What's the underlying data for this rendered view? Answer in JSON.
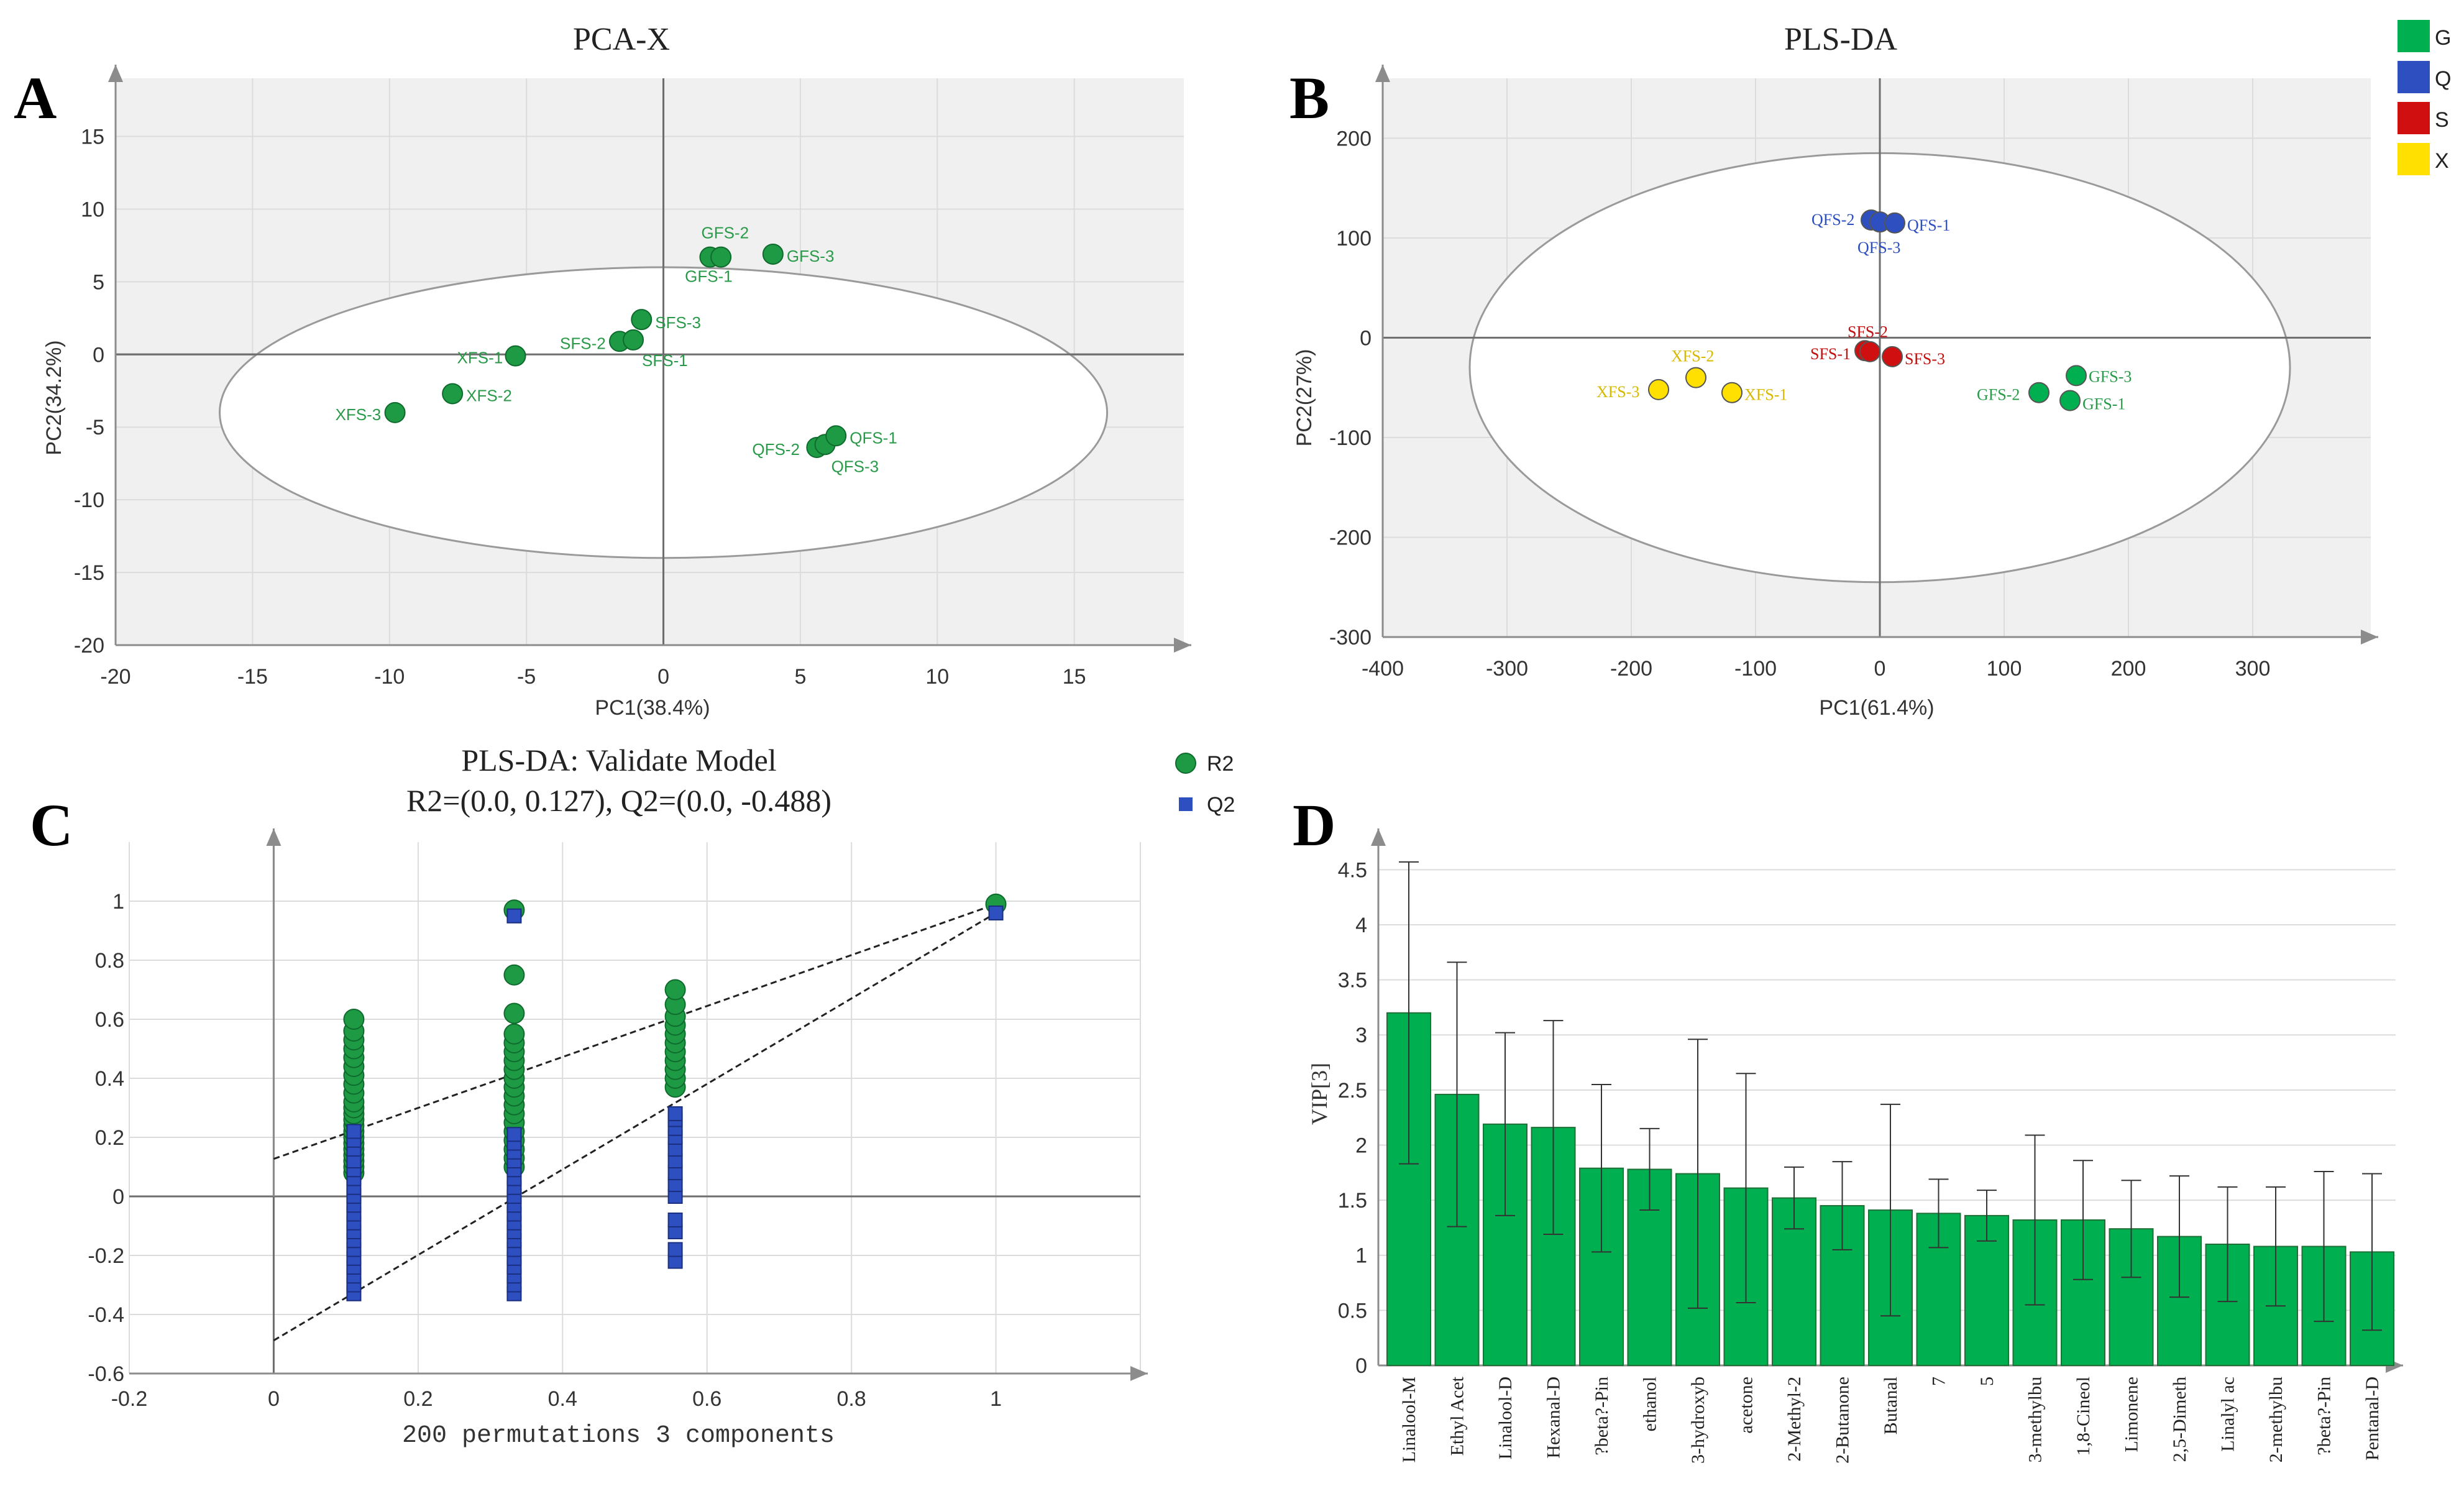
{
  "panels": {
    "A": {
      "letter": "A"
    },
    "B": {
      "letter": "B"
    },
    "C": {
      "letter": "C"
    },
    "D": {
      "letter": "D"
    }
  },
  "chart_data": [
    {
      "id": "A",
      "type": "scatter",
      "title": "PCA-X",
      "xlabel": "PC1(38.4%)",
      "ylabel": "PC2(34.2%)",
      "xlim": [
        -20,
        19
      ],
      "ylim": [
        -20,
        19
      ],
      "xticks": [
        "-20",
        "-15",
        "-10",
        "-5",
        "0",
        "5",
        "10",
        "15"
      ],
      "yticks": [
        "-20",
        "-15",
        "-10",
        "-5",
        "0",
        "5",
        "10",
        "15"
      ],
      "ellipse": {
        "cx": 0,
        "cy": -4,
        "rx": 16.2,
        "ry": 10
      },
      "marker_color": "#1e9a45",
      "label_color": "#2a9a4a",
      "points": [
        {
          "label": "GFS-2",
          "x": 1.7,
          "y": 6.7
        },
        {
          "label": "GFS-1",
          "x": 2.1,
          "y": 6.7
        },
        {
          "label": "GFS-3",
          "x": 4.0,
          "y": 6.9
        },
        {
          "label": "SFS-3",
          "x": -0.8,
          "y": 2.4
        },
        {
          "label": "SFS-2",
          "x": -1.6,
          "y": 0.9
        },
        {
          "label": "SFS-1",
          "x": -1.1,
          "y": 1.0
        },
        {
          "label": "XFS-1",
          "x": -5.4,
          "y": -0.1
        },
        {
          "label": "XFS-2",
          "x": -7.7,
          "y": -2.7
        },
        {
          "label": "XFS-3",
          "x": -9.8,
          "y": -4.0
        },
        {
          "label": "QFS-2",
          "x": 5.6,
          "y": -6.4
        },
        {
          "label": "QFS-3",
          "x": 5.9,
          "y": -6.2
        },
        {
          "label": "QFS-1",
          "x": 6.3,
          "y": -5.6
        }
      ]
    },
    {
      "id": "B",
      "type": "scatter",
      "title": "PLS-DA",
      "xlabel": "PC1(61.4%)",
      "ylabel": "PC2(27%)",
      "xlim": [
        -400,
        395
      ],
      "ylim": [
        -300,
        260
      ],
      "xticks": [
        "-400",
        "-300",
        "-200",
        "-100",
        "0",
        "100",
        "200",
        "300"
      ],
      "yticks": [
        "-300",
        "-200",
        "-100",
        "0",
        "100",
        "200"
      ],
      "ellipse": {
        "cx": 0,
        "cy": -30,
        "rx": 330,
        "ry": 215
      },
      "legend": [
        {
          "label": "G",
          "color": "#00b050"
        },
        {
          "label": "Q",
          "color": "#2e4fbf"
        },
        {
          "label": "S",
          "color": "#d01010"
        },
        {
          "label": "X",
          "color": "#ffe000"
        }
      ],
      "points": [
        {
          "label": "QFS-2",
          "x": -7,
          "y": 118,
          "group": "Q"
        },
        {
          "label": "QFS-3",
          "x": 0,
          "y": 116,
          "group": "Q"
        },
        {
          "label": "QFS-1",
          "x": 12,
          "y": 115,
          "group": "Q"
        },
        {
          "label": "SFS-2",
          "x": -12,
          "y": -13,
          "group": "S"
        },
        {
          "label": "SFS-1",
          "x": -8,
          "y": -14,
          "group": "S"
        },
        {
          "label": "SFS-3",
          "x": 10,
          "y": -19,
          "group": "S"
        },
        {
          "label": "XFS-2",
          "x": -148,
          "y": -40,
          "group": "X"
        },
        {
          "label": "XFS-3",
          "x": -178,
          "y": -52,
          "group": "X"
        },
        {
          "label": "XFS-1",
          "x": -119,
          "y": -55,
          "group": "X"
        },
        {
          "label": "GFS-3",
          "x": 158,
          "y": -38,
          "group": "G"
        },
        {
          "label": "GFS-2",
          "x": 128,
          "y": -55,
          "group": "G"
        },
        {
          "label": "GFS-1",
          "x": 153,
          "y": -63,
          "group": "G"
        }
      ]
    },
    {
      "id": "C",
      "type": "scatter",
      "title": "PLS-DA: Validate Model",
      "subtitle": "R2=(0.0, 0.127), Q2=(0.0, -0.488)",
      "xlabel": "200 permutations 3 components",
      "ylabel": "",
      "xlim": [
        -0.2,
        1.2
      ],
      "ylim": [
        -0.6,
        1.2
      ],
      "xticks": [
        "-0.2",
        "0",
        "0.2",
        "0.4",
        "0.6",
        "0.8",
        "1"
      ],
      "yticks": [
        "-0.6",
        "-0.4",
        "-0.2",
        "0",
        "0.2",
        "0.4",
        "0.6",
        "0.8",
        "1"
      ],
      "legend": [
        {
          "label": "R2",
          "color": "#1e9a45",
          "marker": "circle"
        },
        {
          "label": "Q2",
          "color": "#2e4fbf",
          "marker": "square"
        }
      ],
      "series": [
        {
          "name": "R2",
          "points": [
            {
              "x": 0.111,
              "y": [
                0.08,
                0.1,
                0.12,
                0.14,
                0.16,
                0.18,
                0.2,
                0.22,
                0.24,
                0.26,
                0.28,
                0.3,
                0.32,
                0.35,
                0.38,
                0.41,
                0.44,
                0.47,
                0.5,
                0.53,
                0.56,
                0.6
              ]
            },
            {
              "x": 0.333,
              "y": [
                0.1,
                0.13,
                0.16,
                0.19,
                0.22,
                0.25,
                0.28,
                0.31,
                0.34,
                0.37,
                0.4,
                0.43,
                0.46,
                0.49,
                0.52,
                0.55,
                0.62,
                0.75,
                0.97
              ]
            },
            {
              "x": 0.556,
              "y": [
                0.37,
                0.4,
                0.43,
                0.46,
                0.49,
                0.52,
                0.55,
                0.58,
                0.61,
                0.65,
                0.7
              ]
            },
            {
              "x": 1.0,
              "y": [
                0.99
              ]
            }
          ]
        },
        {
          "name": "Q2",
          "points": [
            {
              "x": 0.111,
              "y": [
                -0.33,
                -0.3,
                -0.27,
                -0.24,
                -0.21,
                -0.18,
                -0.15,
                -0.12,
                -0.09,
                -0.06,
                -0.03,
                0.0,
                0.03,
                0.06,
                0.09,
                0.12,
                0.16,
                0.19,
                0.22
              ]
            },
            {
              "x": 0.333,
              "y": [
                -0.33,
                -0.3,
                -0.27,
                -0.24,
                -0.21,
                -0.18,
                -0.15,
                -0.12,
                -0.09,
                -0.06,
                -0.03,
                0.0,
                0.03,
                0.06,
                0.09,
                0.12,
                0.15,
                0.18,
                0.21,
                0.95
              ]
            },
            {
              "x": 0.556,
              "y": [
                -0.22,
                -0.18,
                -0.12,
                -0.08,
                0.0,
                0.04,
                0.08,
                0.12,
                0.16,
                0.2,
                0.23,
                0.26,
                0.28
              ]
            },
            {
              "x": 1.0,
              "y": [
                0.96
              ]
            }
          ]
        }
      ],
      "regression_lines": [
        {
          "name": "R2",
          "intercept": 0.127,
          "end": [
            1.0,
            0.99
          ]
        },
        {
          "name": "Q2",
          "intercept": -0.488,
          "end": [
            1.0,
            0.96
          ]
        }
      ]
    },
    {
      "id": "D",
      "type": "bar",
      "title": "",
      "xlabel": "",
      "ylabel": "VIP[3]",
      "ylim": [
        0,
        4.75
      ],
      "yticks": [
        "0",
        "0.5",
        "1",
        "1.5",
        "2",
        "2.5",
        "3",
        "3.5",
        "4",
        "4.5"
      ],
      "bar_color": "#00b050",
      "categories": [
        "Linalool-M",
        "Ethyl Acet",
        "Linalool-D",
        "Hexanal-D",
        "?beta?-Pin",
        "ethanol",
        "3-hydroxyb",
        "acetone",
        "2-Methyl-2",
        "2-Butanone",
        "Butanal",
        "7",
        "5",
        "3-methylbu",
        "1,8-Cineol",
        "Limonene",
        "2,5-Dimeth",
        "Linalyl ac",
        "2-methylbu",
        "?beta?-Pin",
        "Pentanal-D"
      ],
      "values": [
        3.2,
        2.46,
        2.19,
        2.16,
        1.79,
        1.78,
        1.74,
        1.61,
        1.52,
        1.45,
        1.41,
        1.38,
        1.36,
        1.32,
        1.32,
        1.24,
        1.17,
        1.1,
        1.08,
        1.08,
        1.03
      ],
      "error": [
        1.37,
        1.2,
        0.83,
        0.97,
        0.76,
        0.37,
        1.22,
        1.04,
        0.28,
        0.4,
        0.96,
        0.31,
        0.23,
        0.77,
        0.54,
        0.44,
        0.55,
        0.52,
        0.54,
        0.68,
        0.71
      ]
    }
  ]
}
